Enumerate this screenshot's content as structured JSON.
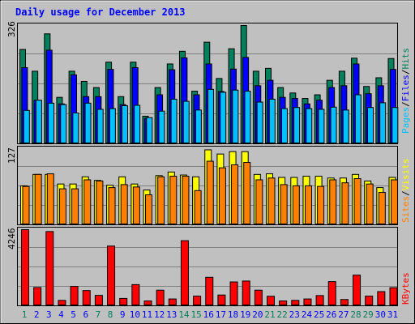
{
  "title": "Daily usage for December 2013",
  "colors": {
    "background": "#C0C0C0",
    "hits": "#00805C",
    "files": "#0000FF",
    "pages": "#00C0FF",
    "visits": "#FFFF00",
    "sites": "#FF8000",
    "kbytes": "#FF0000",
    "title": "#0000FF",
    "weekend_label": "#00805C",
    "weekday_label": "#0000FF"
  },
  "legend": {
    "hits": "Hits",
    "files": "Files",
    "pages": "Pages",
    "visits": "Visits",
    "sites": "Sites",
    "kbytes": "KBytes",
    "sep": "/"
  },
  "chart_data": [
    {
      "type": "bar",
      "categories": [
        "1",
        "2",
        "3",
        "4",
        "5",
        "6",
        "7",
        "8",
        "9",
        "10",
        "11",
        "12",
        "13",
        "14",
        "15",
        "16",
        "17",
        "18",
        "19",
        "20",
        "21",
        "22",
        "23",
        "24",
        "25",
        "26",
        "27",
        "28",
        "29",
        "30",
        "31"
      ],
      "weekend_days": [
        "1",
        "7",
        "8",
        "14",
        "15",
        "21",
        "22",
        "28",
        "29"
      ],
      "ylim": [
        0,
        326
      ],
      "ytick": "326",
      "series": [
        {
          "name": "Hits",
          "values": [
            260,
            200,
            303,
            128,
            200,
            172,
            155,
            225,
            130,
            225,
            76,
            155,
            220,
            255,
            145,
            280,
            180,
            262,
            326,
            200,
            208,
            155,
            140,
            125,
            135,
            175,
            200,
            236,
            158,
            182,
            235
          ]
        },
        {
          "name": "Files",
          "values": [
            210,
            120,
            258,
            110,
            190,
            130,
            130,
            205,
            108,
            210,
            70,
            135,
            204,
            237,
            135,
            220,
            144,
            206,
            238,
            160,
            175,
            128,
            125,
            110,
            120,
            155,
            160,
            220,
            138,
            160,
            205
          ]
        },
        {
          "name": "Pages",
          "values": [
            92,
            120,
            112,
            108,
            85,
            112,
            95,
            97,
            105,
            106,
            72,
            90,
            123,
            117,
            93,
            150,
            142,
            148,
            145,
            115,
            123,
            97,
            100,
            97,
            95,
            101,
            93,
            135,
            100,
            113,
            100
          ]
        }
      ]
    },
    {
      "type": "bar",
      "categories": [
        "1",
        "2",
        "3",
        "4",
        "5",
        "6",
        "7",
        "8",
        "9",
        "10",
        "11",
        "12",
        "13",
        "14",
        "15",
        "16",
        "17",
        "18",
        "19",
        "20",
        "21",
        "22",
        "23",
        "24",
        "25",
        "26",
        "27",
        "28",
        "29",
        "30",
        "31"
      ],
      "ylim": [
        0,
        127
      ],
      "ytick": "127",
      "series": [
        {
          "name": "Visits",
          "values": [
            65,
            84,
            84,
            68,
            68,
            80,
            74,
            66,
            80,
            68,
            58,
            82,
            88,
            83,
            80,
            125,
            118,
            122,
            122,
            84,
            85,
            79,
            79,
            81,
            81,
            78,
            78,
            84,
            73,
            62,
            79
          ]
        },
        {
          "name": "Sites",
          "values": [
            64,
            84,
            85,
            60,
            60,
            75,
            73,
            62,
            67,
            63,
            50,
            80,
            81,
            81,
            57,
            106,
            95,
            100,
            104,
            75,
            78,
            67,
            65,
            65,
            64,
            75,
            70,
            77,
            68,
            54,
            75
          ]
        }
      ]
    },
    {
      "type": "bar",
      "categories": [
        "1",
        "2",
        "3",
        "4",
        "5",
        "6",
        "7",
        "8",
        "9",
        "10",
        "11",
        "12",
        "13",
        "14",
        "15",
        "16",
        "17",
        "18",
        "19",
        "20",
        "21",
        "22",
        "23",
        "24",
        "25",
        "26",
        "27",
        "28",
        "29",
        "30",
        "31"
      ],
      "ylim": [
        0,
        4246
      ],
      "ytick": "4246",
      "series": [
        {
          "name": "KBytes",
          "values": [
            4246,
            1020,
            4140,
            300,
            1080,
            850,
            580,
            3330,
            410,
            1180,
            270,
            870,
            380,
            3630,
            540,
            1590,
            600,
            1330,
            1380,
            870,
            530,
            270,
            300,
            380,
            570,
            1350,
            350,
            1710,
            540,
            790,
            1010
          ]
        }
      ]
    }
  ]
}
